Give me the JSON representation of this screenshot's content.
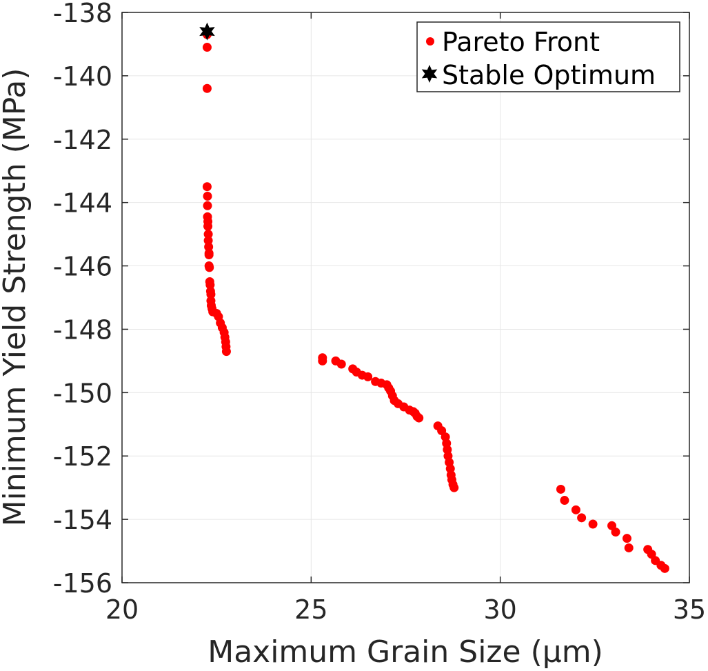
{
  "chart_data": {
    "type": "scatter",
    "title": "",
    "xlabel": "Maximum Grain Size (μm)",
    "ylabel": "Minimum Yield Strength (MPa)",
    "xlim": [
      20,
      35
    ],
    "ylim": [
      -156,
      -138
    ],
    "xticks": [
      20,
      25,
      30,
      35
    ],
    "yticks": [
      -138,
      -140,
      -142,
      -144,
      -146,
      -148,
      -150,
      -152,
      -154,
      -156
    ],
    "grid": true,
    "legend_position": "top-right",
    "colors": {
      "pareto": "#ff0000",
      "stable": "#000000",
      "axis": "#262626",
      "grid": "#e6e6e6"
    },
    "series": [
      {
        "name": "Pareto Front",
        "marker": "circle",
        "color": "#ff0000",
        "points": [
          [
            22.25,
            -138.7
          ],
          [
            22.25,
            -139.1
          ],
          [
            22.25,
            -140.4
          ],
          [
            22.25,
            -143.5
          ],
          [
            22.26,
            -143.8
          ],
          [
            22.26,
            -144.1
          ],
          [
            22.26,
            -144.45
          ],
          [
            22.27,
            -144.6
          ],
          [
            22.27,
            -144.75
          ],
          [
            22.28,
            -145.0
          ],
          [
            22.28,
            -145.2
          ],
          [
            22.29,
            -145.4
          ],
          [
            22.3,
            -145.6
          ],
          [
            22.3,
            -145.65
          ],
          [
            22.3,
            -146.0
          ],
          [
            22.31,
            -146.05
          ],
          [
            22.32,
            -146.5
          ],
          [
            22.33,
            -146.6
          ],
          [
            22.34,
            -146.8
          ],
          [
            22.35,
            -146.9
          ],
          [
            22.35,
            -147.1
          ],
          [
            22.36,
            -147.25
          ],
          [
            22.38,
            -147.35
          ],
          [
            22.4,
            -147.45
          ],
          [
            22.5,
            -147.5
          ],
          [
            22.55,
            -147.6
          ],
          [
            22.6,
            -147.8
          ],
          [
            22.65,
            -147.95
          ],
          [
            22.7,
            -148.1
          ],
          [
            22.72,
            -148.25
          ],
          [
            22.74,
            -148.4
          ],
          [
            22.75,
            -148.55
          ],
          [
            22.76,
            -148.7
          ],
          [
            25.3,
            -148.9
          ],
          [
            25.3,
            -149.0
          ],
          [
            25.65,
            -149.0
          ],
          [
            25.8,
            -149.1
          ],
          [
            26.1,
            -149.25
          ],
          [
            26.2,
            -149.35
          ],
          [
            26.35,
            -149.45
          ],
          [
            26.5,
            -149.5
          ],
          [
            26.7,
            -149.65
          ],
          [
            26.85,
            -149.7
          ],
          [
            27.0,
            -149.75
          ],
          [
            27.05,
            -149.85
          ],
          [
            27.1,
            -149.95
          ],
          [
            27.15,
            -150.1
          ],
          [
            27.2,
            -150.25
          ],
          [
            27.3,
            -150.35
          ],
          [
            27.45,
            -150.45
          ],
          [
            27.6,
            -150.55
          ],
          [
            27.7,
            -150.6
          ],
          [
            27.75,
            -150.65
          ],
          [
            27.8,
            -150.75
          ],
          [
            27.85,
            -150.8
          ],
          [
            28.35,
            -151.05
          ],
          [
            28.45,
            -151.2
          ],
          [
            28.55,
            -151.4
          ],
          [
            28.58,
            -151.6
          ],
          [
            28.6,
            -151.8
          ],
          [
            28.62,
            -152.0
          ],
          [
            28.65,
            -152.2
          ],
          [
            28.68,
            -152.4
          ],
          [
            28.7,
            -152.6
          ],
          [
            28.72,
            -152.75
          ],
          [
            28.75,
            -152.9
          ],
          [
            28.78,
            -153.0
          ],
          [
            31.6,
            -153.05
          ],
          [
            31.7,
            -153.4
          ],
          [
            32.0,
            -153.7
          ],
          [
            32.15,
            -153.95
          ],
          [
            32.45,
            -154.15
          ],
          [
            32.95,
            -154.2
          ],
          [
            33.05,
            -154.4
          ],
          [
            33.35,
            -154.6
          ],
          [
            33.4,
            -154.9
          ],
          [
            33.9,
            -154.95
          ],
          [
            34.0,
            -155.1
          ],
          [
            34.1,
            -155.3
          ],
          [
            34.25,
            -155.45
          ],
          [
            34.35,
            -155.55
          ]
        ]
      },
      {
        "name": "Stable Optimum",
        "marker": "hexagram",
        "color": "#000000",
        "points": [
          [
            22.25,
            -138.6
          ]
        ]
      }
    ]
  }
}
